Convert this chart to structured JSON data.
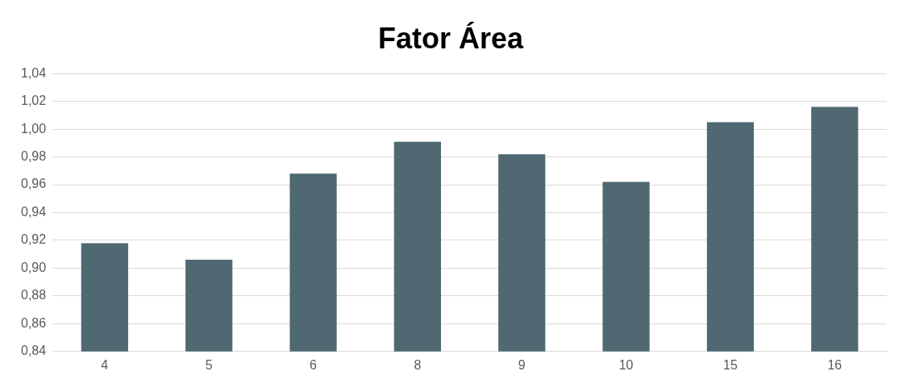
{
  "chart_data": {
    "type": "bar",
    "title": "Fator Área",
    "categories": [
      "4",
      "5",
      "6",
      "8",
      "9",
      "10",
      "15",
      "16"
    ],
    "values": [
      0.918,
      0.906,
      0.968,
      0.991,
      0.982,
      0.962,
      1.005,
      1.016
    ],
    "color": "#506872",
    "ylim": [
      0.84,
      1.04
    ],
    "yticks": [
      {
        "value": 0.84,
        "label": "0,84"
      },
      {
        "value": 0.86,
        "label": "0,86"
      },
      {
        "value": 0.88,
        "label": "0,88"
      },
      {
        "value": 0.9,
        "label": "0,90"
      },
      {
        "value": 0.92,
        "label": "0,92"
      },
      {
        "value": 0.94,
        "label": "0,94"
      },
      {
        "value": 0.96,
        "label": "0,96"
      },
      {
        "value": 0.98,
        "label": "0,98"
      },
      {
        "value": 1.0,
        "label": "1,00"
      },
      {
        "value": 1.02,
        "label": "1,02"
      },
      {
        "value": 1.04,
        "label": "1,04"
      }
    ],
    "grid": "y"
  }
}
